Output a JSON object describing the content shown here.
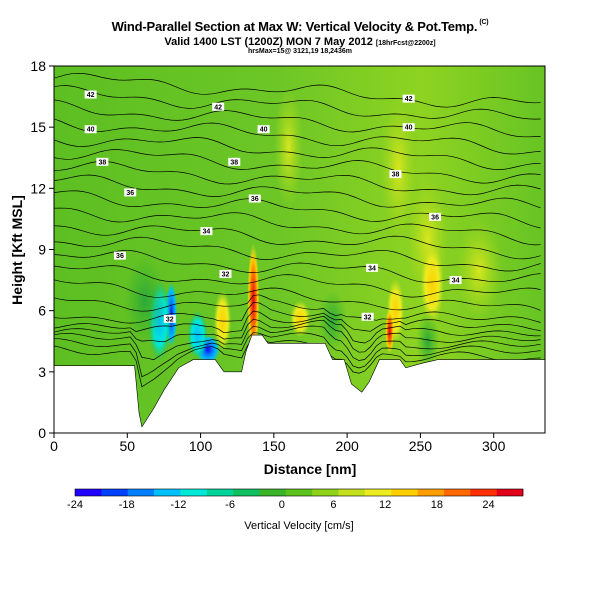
{
  "header": {
    "title": "Wind-Parallel Section at Max W: Vertical Velocity & Pot.Temp.",
    "title_mark": "(C)",
    "line2_main": "Valid 1400 LST (1200Z) MON 7 May 2012",
    "line2_small": "[18hrFcst@2200z]",
    "line3": "hrsMax=15@ 3121,19 18,2436m"
  },
  "colorbar": {
    "label": "Vertical Velocity [cm/s]",
    "ticks": [
      "-24",
      "-18",
      "-12",
      "-6",
      "0",
      "6",
      "12",
      "18",
      "24"
    ],
    "colors": [
      "#1f00ff",
      "#0041ff",
      "#0080ff",
      "#00bfff",
      "#00e8d8",
      "#00d49a",
      "#10c060",
      "#3ab52a",
      "#5ec21e",
      "#8fd21a",
      "#c4e01c",
      "#ecec20",
      "#ffd000",
      "#ff9e00",
      "#ff6a00",
      "#ff2e00",
      "#e0001a"
    ]
  },
  "chart_data": {
    "type": "heatmap",
    "title": "Wind-Parallel Section at Max W: Vertical Velocity & Pot.Temp.",
    "xlabel": "Distance [nm]",
    "ylabel": "Height [Kft MSL]",
    "xlim": [
      0,
      335
    ],
    "ylim": [
      0,
      18
    ],
    "xticks": [
      "0",
      "50",
      "100",
      "150",
      "200",
      "250",
      "300"
    ],
    "yticks": [
      "0",
      "3",
      "6",
      "9",
      "12",
      "15",
      "18"
    ],
    "contour_labels": [
      {
        "text": "42",
        "x": 25,
        "y": 16.6
      },
      {
        "text": "42",
        "x": 112,
        "y": 16.0
      },
      {
        "text": "42",
        "x": 242,
        "y": 16.4
      },
      {
        "text": "40",
        "x": 25,
        "y": 14.9
      },
      {
        "text": "40",
        "x": 143,
        "y": 14.9
      },
      {
        "text": "40",
        "x": 242,
        "y": 15.0
      },
      {
        "text": "38",
        "x": 33,
        "y": 13.3
      },
      {
        "text": "38",
        "x": 123,
        "y": 13.3
      },
      {
        "text": "38",
        "x": 233,
        "y": 12.7
      },
      {
        "text": "36",
        "x": 52,
        "y": 11.8
      },
      {
        "text": "36",
        "x": 137,
        "y": 11.5
      },
      {
        "text": "36",
        "x": 260,
        "y": 10.6
      },
      {
        "text": "34",
        "x": 104,
        "y": 9.9
      },
      {
        "text": "34",
        "x": 217,
        "y": 8.1
      },
      {
        "text": "34",
        "x": 274,
        "y": 7.5
      },
      {
        "text": "36",
        "x": 45,
        "y": 8.7
      },
      {
        "text": "32",
        "x": 117,
        "y": 7.8
      },
      {
        "text": "32",
        "x": 79,
        "y": 5.6
      },
      {
        "text": "32",
        "x": 214,
        "y": 5.7
      }
    ],
    "terrain_height_kft": [
      [
        0,
        3.3
      ],
      [
        55,
        3.3
      ],
      [
        58,
        1.0
      ],
      [
        60,
        0.3
      ],
      [
        68,
        1.2
      ],
      [
        75,
        2.1
      ],
      [
        85,
        3.2
      ],
      [
        95,
        3.6
      ],
      [
        110,
        3.6
      ],
      [
        116,
        3.0
      ],
      [
        128,
        3.0
      ],
      [
        131,
        4.0
      ],
      [
        135,
        4.8
      ],
      [
        142,
        4.8
      ],
      [
        146,
        4.4
      ],
      [
        185,
        4.4
      ],
      [
        190,
        3.6
      ],
      [
        198,
        3.6
      ],
      [
        203,
        2.4
      ],
      [
        210,
        2.0
      ],
      [
        215,
        2.5
      ],
      [
        222,
        3.6
      ],
      [
        236,
        3.6
      ],
      [
        240,
        3.2
      ],
      [
        250,
        3.4
      ],
      [
        262,
        3.6
      ],
      [
        300,
        3.6
      ],
      [
        335,
        3.6
      ]
    ]
  }
}
